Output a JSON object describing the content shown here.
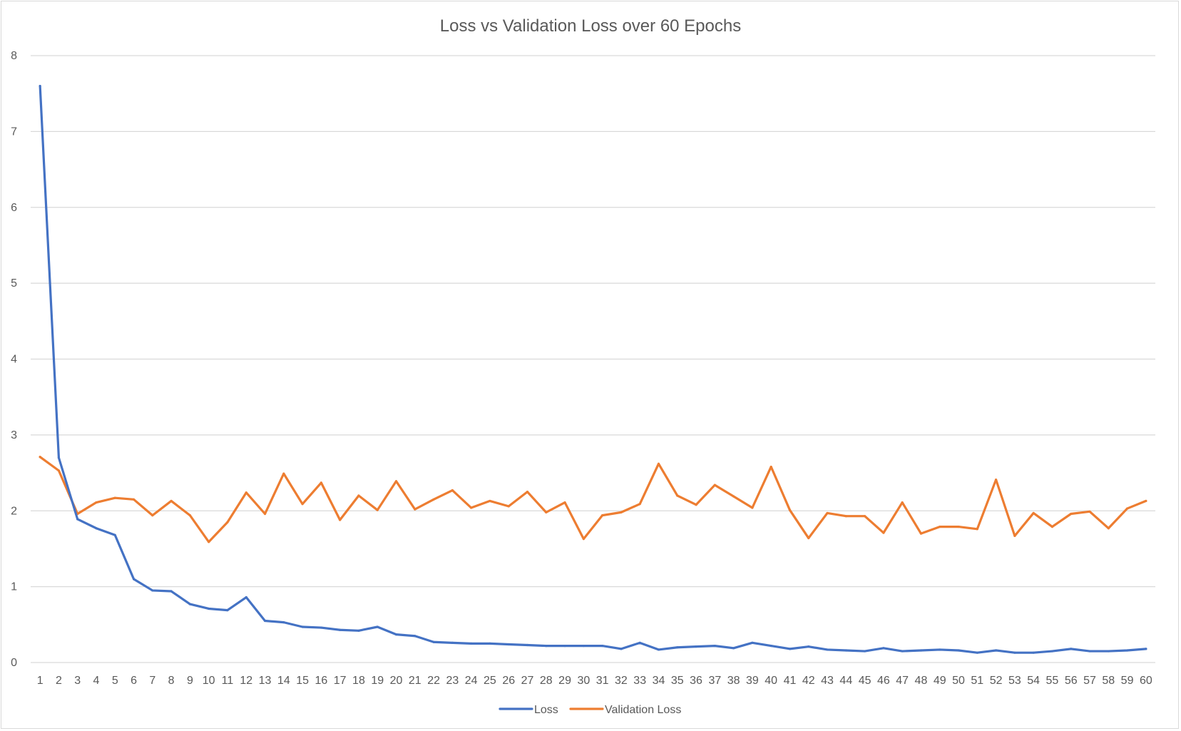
{
  "chart_data": {
    "type": "line",
    "title": "Loss vs Validation Loss over 60 Epochs",
    "xlabel": "",
    "ylabel": "",
    "categories": [
      "1",
      "2",
      "3",
      "4",
      "5",
      "6",
      "7",
      "8",
      "9",
      "10",
      "11",
      "12",
      "13",
      "14",
      "15",
      "16",
      "17",
      "18",
      "19",
      "20",
      "21",
      "22",
      "23",
      "24",
      "25",
      "26",
      "27",
      "28",
      "29",
      "30",
      "31",
      "32",
      "33",
      "34",
      "35",
      "36",
      "37",
      "38",
      "39",
      "40",
      "41",
      "42",
      "43",
      "44",
      "45",
      "46",
      "47",
      "48",
      "49",
      "50",
      "51",
      "52",
      "53",
      "54",
      "55",
      "56",
      "57",
      "58",
      "59",
      "60"
    ],
    "ylim": [
      0,
      8
    ],
    "yticks": [
      0,
      1,
      2,
      3,
      4,
      5,
      6,
      7,
      8
    ],
    "grid": true,
    "legend_position": "bottom",
    "series": [
      {
        "name": "Loss",
        "color": "#4472C4",
        "values": [
          7.6,
          2.7,
          1.89,
          1.77,
          1.68,
          1.1,
          0.95,
          0.94,
          0.77,
          0.71,
          0.69,
          0.86,
          0.55,
          0.53,
          0.47,
          0.46,
          0.43,
          0.42,
          0.47,
          0.37,
          0.35,
          0.27,
          0.26,
          0.25,
          0.25,
          0.24,
          0.23,
          0.22,
          0.22,
          0.22,
          0.22,
          0.18,
          0.26,
          0.17,
          0.2,
          0.21,
          0.22,
          0.19,
          0.26,
          0.22,
          0.18,
          0.21,
          0.17,
          0.16,
          0.15,
          0.19,
          0.15,
          0.16,
          0.17,
          0.16,
          0.13,
          0.16,
          0.13,
          0.13,
          0.15,
          0.18,
          0.15,
          0.15,
          0.16,
          0.18
        ]
      },
      {
        "name": "Validation Loss",
        "color": "#ED7D31",
        "values": [
          2.71,
          2.53,
          1.96,
          2.11,
          2.17,
          2.15,
          1.94,
          2.13,
          1.94,
          1.59,
          1.85,
          2.24,
          1.96,
          2.49,
          2.09,
          2.37,
          1.88,
          2.2,
          2.01,
          2.39,
          2.02,
          2.15,
          2.27,
          2.04,
          2.13,
          2.06,
          2.25,
          1.98,
          2.11,
          1.63,
          1.94,
          1.98,
          2.09,
          2.62,
          2.2,
          2.08,
          2.34,
          2.19,
          2.04,
          2.58,
          2.01,
          1.64,
          1.97,
          1.93,
          1.93,
          1.71,
          2.11,
          1.7,
          1.79,
          1.79,
          1.76,
          2.41,
          1.67,
          1.97,
          1.79,
          1.96,
          1.99,
          1.77,
          2.03,
          2.13
        ]
      }
    ]
  }
}
